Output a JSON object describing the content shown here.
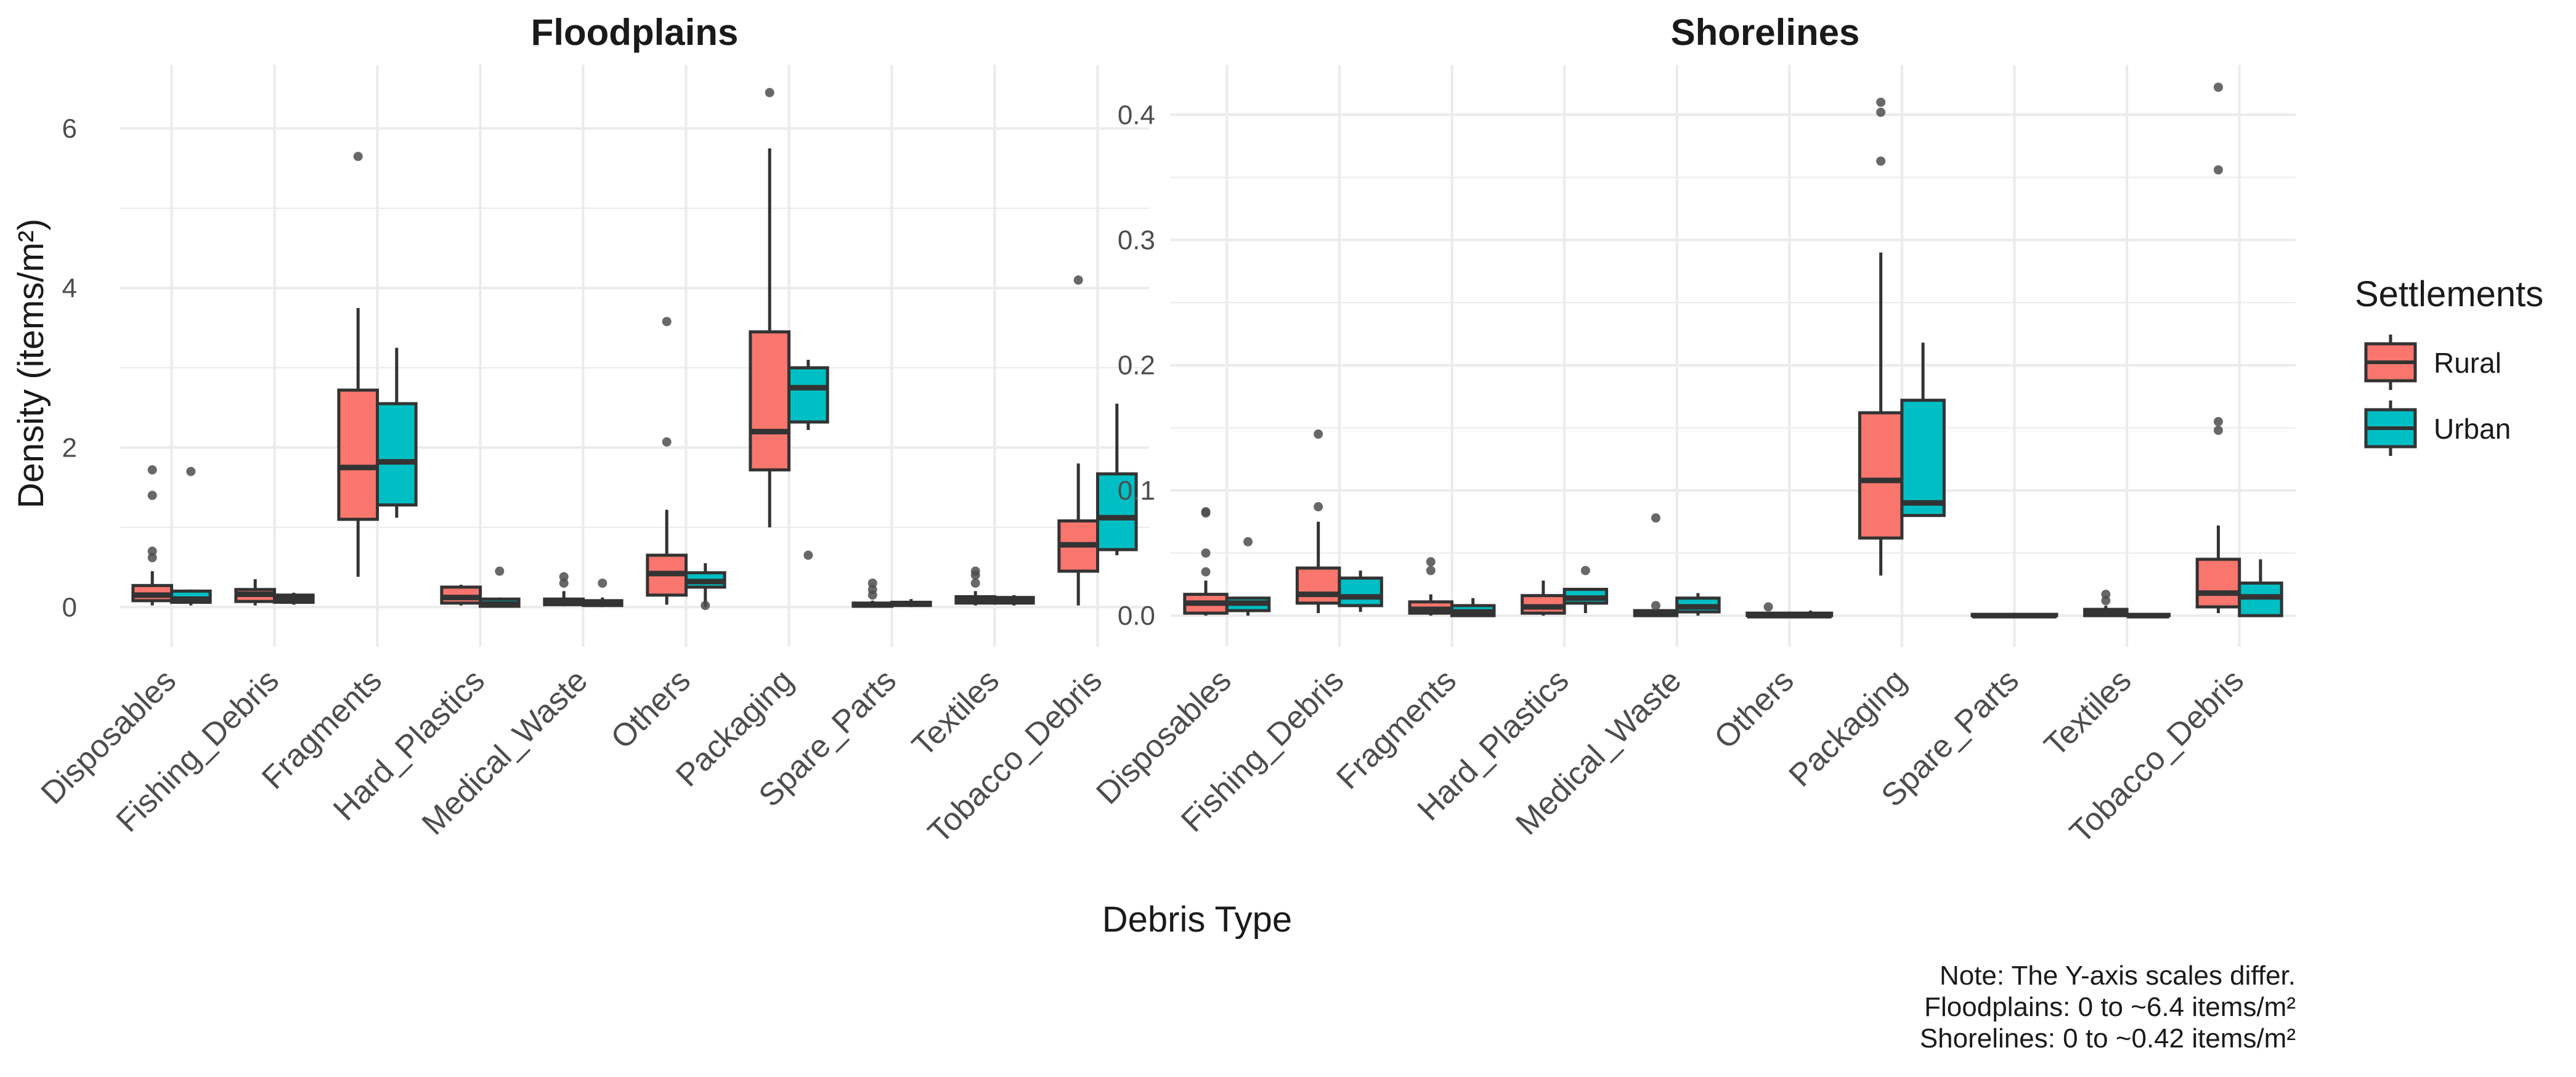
{
  "chart_data": [
    {
      "type": "box",
      "title": "Floodplains",
      "xlabel": "Debris Type",
      "ylabel": "Density (items/m²)",
      "ylim": [
        -0.5,
        6.8
      ],
      "yticks": [
        0,
        2,
        4,
        6
      ],
      "yticklabels": [
        "0",
        "2",
        "4",
        "6"
      ],
      "categories": [
        "Disposables",
        "Fishing_Debris",
        "Fragments",
        "Hard_Plastics",
        "Medical_Waste",
        "Others",
        "Packaging",
        "Spare_Parts",
        "Textiles",
        "Tobacco_Debris"
      ],
      "series": [
        {
          "name": "Rural",
          "boxes": [
            {
              "min": 0.02,
              "q1": 0.08,
              "median": 0.15,
              "q3": 0.27,
              "max": 0.45,
              "outliers": [
                1.72,
                1.4,
                0.7,
                0.62
              ]
            },
            {
              "min": 0.02,
              "q1": 0.07,
              "median": 0.16,
              "q3": 0.22,
              "max": 0.35,
              "outliers": []
            },
            {
              "min": 0.38,
              "q1": 1.1,
              "median": 1.75,
              "q3": 2.72,
              "max": 3.75,
              "outliers": [
                5.65
              ]
            },
            {
              "min": 0.02,
              "q1": 0.05,
              "median": 0.12,
              "q3": 0.25,
              "max": 0.28,
              "outliers": []
            },
            {
              "min": 0.01,
              "q1": 0.03,
              "median": 0.07,
              "q3": 0.1,
              "max": 0.2,
              "outliers": [
                0.38,
                0.3
              ]
            },
            {
              "min": 0.03,
              "q1": 0.15,
              "median": 0.42,
              "q3": 0.65,
              "max": 1.22,
              "outliers": [
                3.58,
                2.07
              ]
            },
            {
              "min": 1.0,
              "q1": 1.72,
              "median": 2.2,
              "q3": 3.45,
              "max": 5.75,
              "outliers": [
                6.45
              ]
            },
            {
              "min": 0.0,
              "q1": 0.01,
              "median": 0.03,
              "q3": 0.05,
              "max": 0.08,
              "outliers": [
                0.3,
                0.22,
                0.15
              ]
            },
            {
              "min": 0.02,
              "q1": 0.05,
              "median": 0.1,
              "q3": 0.13,
              "max": 0.2,
              "outliers": [
                0.45,
                0.4,
                0.3
              ]
            },
            {
              "min": 0.02,
              "q1": 0.45,
              "median": 0.78,
              "q3": 1.08,
              "max": 1.8,
              "outliers": [
                4.1
              ]
            }
          ]
        },
        {
          "name": "Urban",
          "boxes": [
            {
              "min": 0.02,
              "q1": 0.06,
              "median": 0.1,
              "q3": 0.2,
              "max": 0.22,
              "outliers": [
                1.7
              ]
            },
            {
              "min": 0.03,
              "q1": 0.06,
              "median": 0.1,
              "q3": 0.15,
              "max": 0.18,
              "outliers": []
            },
            {
              "min": 1.12,
              "q1": 1.28,
              "median": 1.82,
              "q3": 2.55,
              "max": 3.25,
              "outliers": []
            },
            {
              "min": 0.0,
              "q1": 0.01,
              "median": 0.04,
              "q3": 0.1,
              "max": 0.12,
              "outliers": [
                0.45
              ]
            },
            {
              "min": 0.0,
              "q1": 0.02,
              "median": 0.06,
              "q3": 0.08,
              "max": 0.12,
              "outliers": [
                0.3
              ]
            },
            {
              "min": 0.0,
              "q1": 0.25,
              "median": 0.32,
              "q3": 0.43,
              "max": 0.55,
              "outliers": [
                0.02
              ]
            },
            {
              "min": 2.22,
              "q1": 2.32,
              "median": 2.75,
              "q3": 3.0,
              "max": 3.1,
              "outliers": [
                0.65
              ]
            },
            {
              "min": 0.0,
              "q1": 0.02,
              "median": 0.04,
              "q3": 0.06,
              "max": 0.1,
              "outliers": []
            },
            {
              "min": 0.02,
              "q1": 0.05,
              "median": 0.08,
              "q3": 0.12,
              "max": 0.15,
              "outliers": []
            },
            {
              "min": 0.65,
              "q1": 0.72,
              "median": 1.12,
              "q3": 1.67,
              "max": 2.55,
              "outliers": []
            }
          ]
        }
      ]
    },
    {
      "type": "box",
      "title": "Shorelines",
      "xlabel": "Debris Type",
      "ylim": [
        -0.025,
        0.44
      ],
      "yticks": [
        0,
        0.1,
        0.2,
        0.3,
        0.4
      ],
      "yticklabels": [
        "0.0",
        "0.1",
        "0.2",
        "0.3",
        "0.4"
      ],
      "categories": [
        "Disposables",
        "Fishing_Debris",
        "Fragments",
        "Hard_Plastics",
        "Medical_Waste",
        "Others",
        "Packaging",
        "Spare_Parts",
        "Textiles",
        "Tobacco_Debris"
      ],
      "series": [
        {
          "name": "Rural",
          "boxes": [
            {
              "min": 0.0,
              "q1": 0.002,
              "median": 0.01,
              "q3": 0.017,
              "max": 0.028,
              "outliers": [
                0.083,
                0.082,
                0.05,
                0.035
              ]
            },
            {
              "min": 0.002,
              "q1": 0.01,
              "median": 0.017,
              "q3": 0.038,
              "max": 0.075,
              "outliers": [
                0.145,
                0.087
              ]
            },
            {
              "min": 0.0,
              "q1": 0.002,
              "median": 0.005,
              "q3": 0.011,
              "max": 0.017,
              "outliers": [
                0.043,
                0.036
              ]
            },
            {
              "min": 0.0,
              "q1": 0.002,
              "median": 0.007,
              "q3": 0.016,
              "max": 0.028,
              "outliers": []
            },
            {
              "min": 0.0,
              "q1": 0.0,
              "median": 0.002,
              "q3": 0.004,
              "max": 0.005,
              "outliers": [
                0.078,
                0.008
              ]
            },
            {
              "min": 0.0,
              "q1": 0.0,
              "median": 0.0,
              "q3": 0.002,
              "max": 0.003,
              "outliers": [
                0.007
              ]
            },
            {
              "min": 0.032,
              "q1": 0.062,
              "median": 0.108,
              "q3": 0.162,
              "max": 0.29,
              "outliers": [
                0.41,
                0.402,
                0.363
              ]
            },
            {
              "min": 0.0,
              "q1": 0.0,
              "median": 0.0,
              "q3": 0.001,
              "max": 0.001,
              "outliers": []
            },
            {
              "min": 0.0,
              "q1": 0.0,
              "median": 0.002,
              "q3": 0.005,
              "max": 0.008,
              "outliers": [
                0.017,
                0.012
              ]
            },
            {
              "min": 0.002,
              "q1": 0.007,
              "median": 0.018,
              "q3": 0.045,
              "max": 0.072,
              "outliers": [
                0.422,
                0.356,
                0.155,
                0.148
              ]
            }
          ]
        },
        {
          "name": "Urban",
          "boxes": [
            {
              "min": 0.0,
              "q1": 0.004,
              "median": 0.01,
              "q3": 0.014,
              "max": 0.015,
              "outliers": [
                0.059
              ]
            },
            {
              "min": 0.003,
              "q1": 0.008,
              "median": 0.015,
              "q3": 0.03,
              "max": 0.036,
              "outliers": []
            },
            {
              "min": 0.0,
              "q1": 0.0,
              "median": 0.003,
              "q3": 0.008,
              "max": 0.014,
              "outliers": []
            },
            {
              "min": 0.002,
              "q1": 0.01,
              "median": 0.014,
              "q3": 0.021,
              "max": 0.022,
              "outliers": [
                0.036
              ]
            },
            {
              "min": 0.0,
              "q1": 0.003,
              "median": 0.007,
              "q3": 0.014,
              "max": 0.018,
              "outliers": []
            },
            {
              "min": 0.0,
              "q1": 0.0,
              "median": 0.0,
              "q3": 0.002,
              "max": 0.004,
              "outliers": []
            },
            {
              "min": 0.08,
              "q1": 0.08,
              "median": 0.09,
              "q3": 0.172,
              "max": 0.218,
              "outliers": []
            },
            {
              "min": 0.0,
              "q1": 0.0,
              "median": 0.0,
              "q3": 0.001,
              "max": 0.001,
              "outliers": []
            },
            {
              "min": 0.0,
              "q1": 0.0,
              "median": 0.0,
              "q3": 0.001,
              "max": 0.002,
              "outliers": []
            },
            {
              "min": 0.0,
              "q1": 0.0,
              "median": 0.015,
              "q3": 0.026,
              "max": 0.045,
              "outliers": []
            }
          ]
        }
      ]
    }
  ],
  "legend": {
    "title": "Settlements",
    "items": [
      {
        "name": "Rural",
        "color": "#F8766D"
      },
      {
        "name": "Urban",
        "color": "#00BFC4"
      }
    ]
  },
  "note": {
    "lines": [
      "Note: The Y-axis scales differ.",
      "Floodplains: 0 to ~6.4 items/m²",
      "Shorelines: 0 to ~0.42 items/m²"
    ]
  },
  "colors": {
    "rural": "#F8766D",
    "urban": "#00BFC4",
    "box_edge": "#333333",
    "grid": "#ebebeb",
    "outlier": "#4d4d4d"
  }
}
